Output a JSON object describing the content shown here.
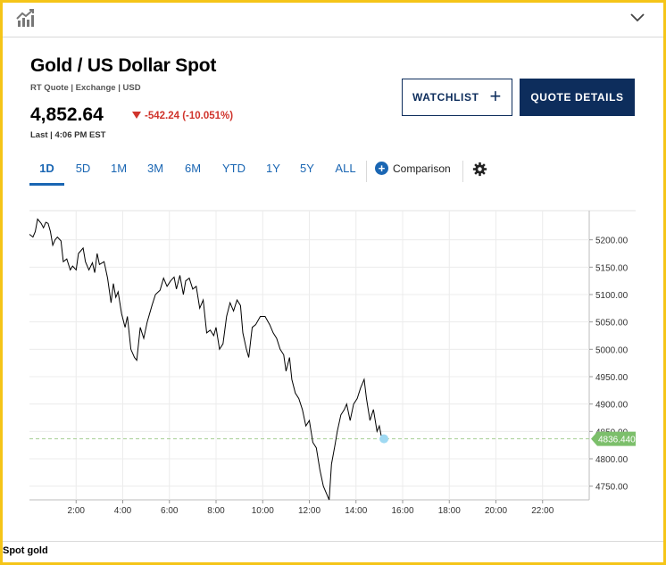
{
  "header": {
    "icon": "chart-trend-icon",
    "collapse_icon": "chevron-down-icon"
  },
  "quote": {
    "title": "Gold / US Dollar Spot",
    "subinfo": "RT Quote | Exchange | USD",
    "price": "4,852.64",
    "change": "-542.24 (-10.051%)",
    "last": "Last | 4:06 PM EST",
    "change_color": "#d0342c"
  },
  "buttons": {
    "watchlist": "WATCHLIST",
    "quote_details": "QUOTE DETAILS"
  },
  "tabs": [
    "1D",
    "5D",
    "1M",
    "3M",
    "6M",
    "YTD",
    "1Y",
    "5Y",
    "ALL"
  ],
  "active_tab": "1D",
  "comparison_label": "Comparison",
  "footer_label": "Spot gold",
  "chart_data": {
    "type": "line",
    "title": "",
    "xlabel": "",
    "ylabel": "",
    "x_ticks": [
      "2:00",
      "4:00",
      "6:00",
      "8:00",
      "10:00",
      "12:00",
      "14:00",
      "16:00",
      "18:00",
      "20:00",
      "22:00"
    ],
    "y_ticks": [
      "5200.00",
      "5150.00",
      "5100.00",
      "5050.00",
      "5000.00",
      "4950.00",
      "4900.00",
      "4850.00",
      "4800.00",
      "4750.00"
    ],
    "ylim": [
      4725,
      5250
    ],
    "xlim_hours": [
      0,
      24
    ],
    "grid": true,
    "last_value": 4836.44,
    "last_label": "4836.4400",
    "line_color": "#000000",
    "last_marker_color": "#9fd9f2",
    "last_label_color": "#7cbf6b",
    "series": [
      {
        "values": [
          [
            0.0,
            5210
          ],
          [
            0.15,
            5205
          ],
          [
            0.25,
            5215
          ],
          [
            0.35,
            5238
          ],
          [
            0.5,
            5230
          ],
          [
            0.6,
            5222
          ],
          [
            0.7,
            5232
          ],
          [
            0.8,
            5230
          ],
          [
            0.9,
            5215
          ],
          [
            1.0,
            5190
          ],
          [
            1.1,
            5200
          ],
          [
            1.2,
            5205
          ],
          [
            1.35,
            5198
          ],
          [
            1.45,
            5160
          ],
          [
            1.6,
            5165
          ],
          [
            1.75,
            5145
          ],
          [
            1.85,
            5152
          ],
          [
            2.0,
            5145
          ],
          [
            2.1,
            5175
          ],
          [
            2.3,
            5185
          ],
          [
            2.4,
            5160
          ],
          [
            2.55,
            5145
          ],
          [
            2.7,
            5158
          ],
          [
            2.8,
            5140
          ],
          [
            2.9,
            5175
          ],
          [
            3.0,
            5155
          ],
          [
            3.2,
            5160
          ],
          [
            3.35,
            5130
          ],
          [
            3.5,
            5085
          ],
          [
            3.6,
            5120
          ],
          [
            3.7,
            5095
          ],
          [
            3.8,
            5105
          ],
          [
            3.95,
            5065
          ],
          [
            4.1,
            5040
          ],
          [
            4.2,
            5060
          ],
          [
            4.35,
            5000
          ],
          [
            4.5,
            4985
          ],
          [
            4.6,
            4980
          ],
          [
            4.75,
            5040
          ],
          [
            4.9,
            5020
          ],
          [
            5.05,
            5050
          ],
          [
            5.25,
            5080
          ],
          [
            5.4,
            5100
          ],
          [
            5.6,
            5108
          ],
          [
            5.75,
            5130
          ],
          [
            5.9,
            5115
          ],
          [
            6.05,
            5125
          ],
          [
            6.2,
            5132
          ],
          [
            6.3,
            5110
          ],
          [
            6.45,
            5135
          ],
          [
            6.6,
            5100
          ],
          [
            6.7,
            5125
          ],
          [
            6.85,
            5130
          ],
          [
            7.0,
            5110
          ],
          [
            7.15,
            5115
          ],
          [
            7.3,
            5075
          ],
          [
            7.45,
            5090
          ],
          [
            7.6,
            5030
          ],
          [
            7.75,
            5035
          ],
          [
            7.9,
            5025
          ],
          [
            8.0,
            5040
          ],
          [
            8.15,
            5000
          ],
          [
            8.3,
            5010
          ],
          [
            8.45,
            5060
          ],
          [
            8.6,
            5085
          ],
          [
            8.75,
            5070
          ],
          [
            8.9,
            5090
          ],
          [
            9.05,
            5080
          ],
          [
            9.15,
            5030
          ],
          [
            9.3,
            5000
          ],
          [
            9.4,
            4985
          ],
          [
            9.55,
            5040
          ],
          [
            9.7,
            5045
          ],
          [
            9.9,
            5060
          ],
          [
            10.1,
            5060
          ],
          [
            10.3,
            5045
          ],
          [
            10.45,
            5030
          ],
          [
            10.6,
            5020
          ],
          [
            10.75,
            5000
          ],
          [
            10.9,
            4990
          ],
          [
            11.0,
            4960
          ],
          [
            11.15,
            4985
          ],
          [
            11.25,
            4945
          ],
          [
            11.4,
            4920
          ],
          [
            11.55,
            4910
          ],
          [
            11.7,
            4890
          ],
          [
            11.85,
            4860
          ],
          [
            12.0,
            4870
          ],
          [
            12.15,
            4830
          ],
          [
            12.3,
            4820
          ],
          [
            12.45,
            4780
          ],
          [
            12.6,
            4750
          ],
          [
            12.75,
            4735
          ],
          [
            12.85,
            4725
          ],
          [
            12.95,
            4790
          ],
          [
            13.1,
            4825
          ],
          [
            13.2,
            4850
          ],
          [
            13.35,
            4880
          ],
          [
            13.5,
            4890
          ],
          [
            13.6,
            4900
          ],
          [
            13.75,
            4870
          ],
          [
            13.9,
            4900
          ],
          [
            14.05,
            4910
          ],
          [
            14.2,
            4930
          ],
          [
            14.35,
            4945
          ],
          [
            14.45,
            4910
          ],
          [
            14.6,
            4870
          ],
          [
            14.75,
            4890
          ],
          [
            14.9,
            4850
          ],
          [
            15.0,
            4860
          ],
          [
            15.1,
            4838
          ],
          [
            15.2,
            4836.44
          ]
        ]
      }
    ]
  }
}
